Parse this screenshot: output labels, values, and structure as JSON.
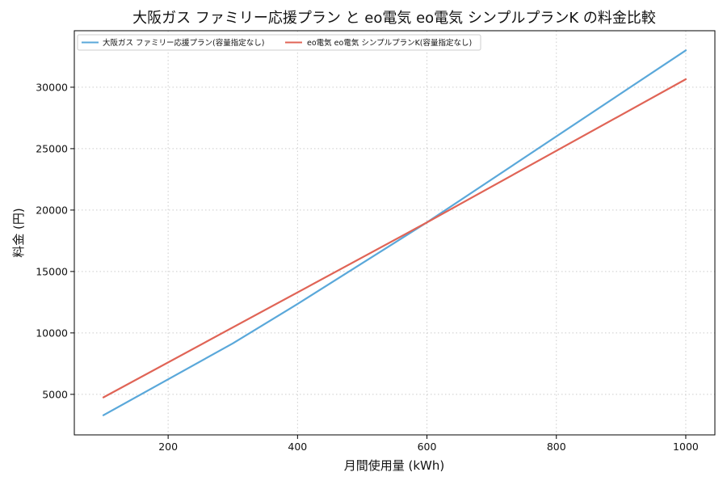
{
  "chart_data": {
    "type": "line",
    "title": "大阪ガス ファミリー応援プラン と eo電気 eo電気 シンプルプランK の料金比較",
    "xlabel": "月間使用量 (kWh)",
    "ylabel": "料金 (円)",
    "xlim": [
      55,
      1045
    ],
    "ylim": [
      1700,
      34600
    ],
    "xticks": [
      200,
      400,
      600,
      800,
      1000
    ],
    "yticks": [
      5000,
      10000,
      15000,
      20000,
      25000,
      30000
    ],
    "grid": true,
    "legend_position": "top-left",
    "series": [
      {
        "name": "大阪ガス ファミリー応援プラン(容量指定なし)",
        "color": "#5aa8da",
        "x": [
          100,
          300,
          400,
          600,
          1000
        ],
        "y": [
          3300,
          9150,
          12350,
          19000,
          33000
        ]
      },
      {
        "name": "eo電気 eo電気 シンプルプランK(容量指定なし)",
        "color": "#e06456",
        "x": [
          100,
          600,
          1000
        ],
        "y": [
          4750,
          19000,
          30650
        ]
      }
    ]
  }
}
